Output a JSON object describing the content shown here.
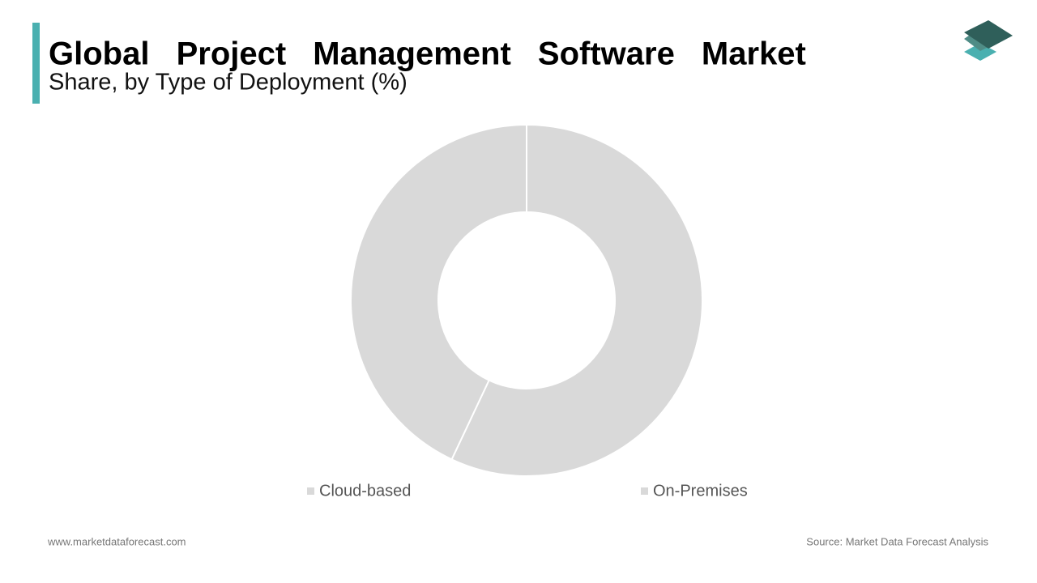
{
  "chart_data": {
    "type": "pie",
    "title": "Global Project Management Software Market",
    "subtitle": "Share, by Type of Deployment (%)",
    "categories": [
      "Cloud-based",
      "On-Premises"
    ],
    "values": [
      57,
      43
    ],
    "colors": [
      "#d9d9d9",
      "#d9d9d9"
    ],
    "footer_left": "www.marketdataforecast.com",
    "footer_right": "Source: Market Data Forecast Analysis"
  }
}
